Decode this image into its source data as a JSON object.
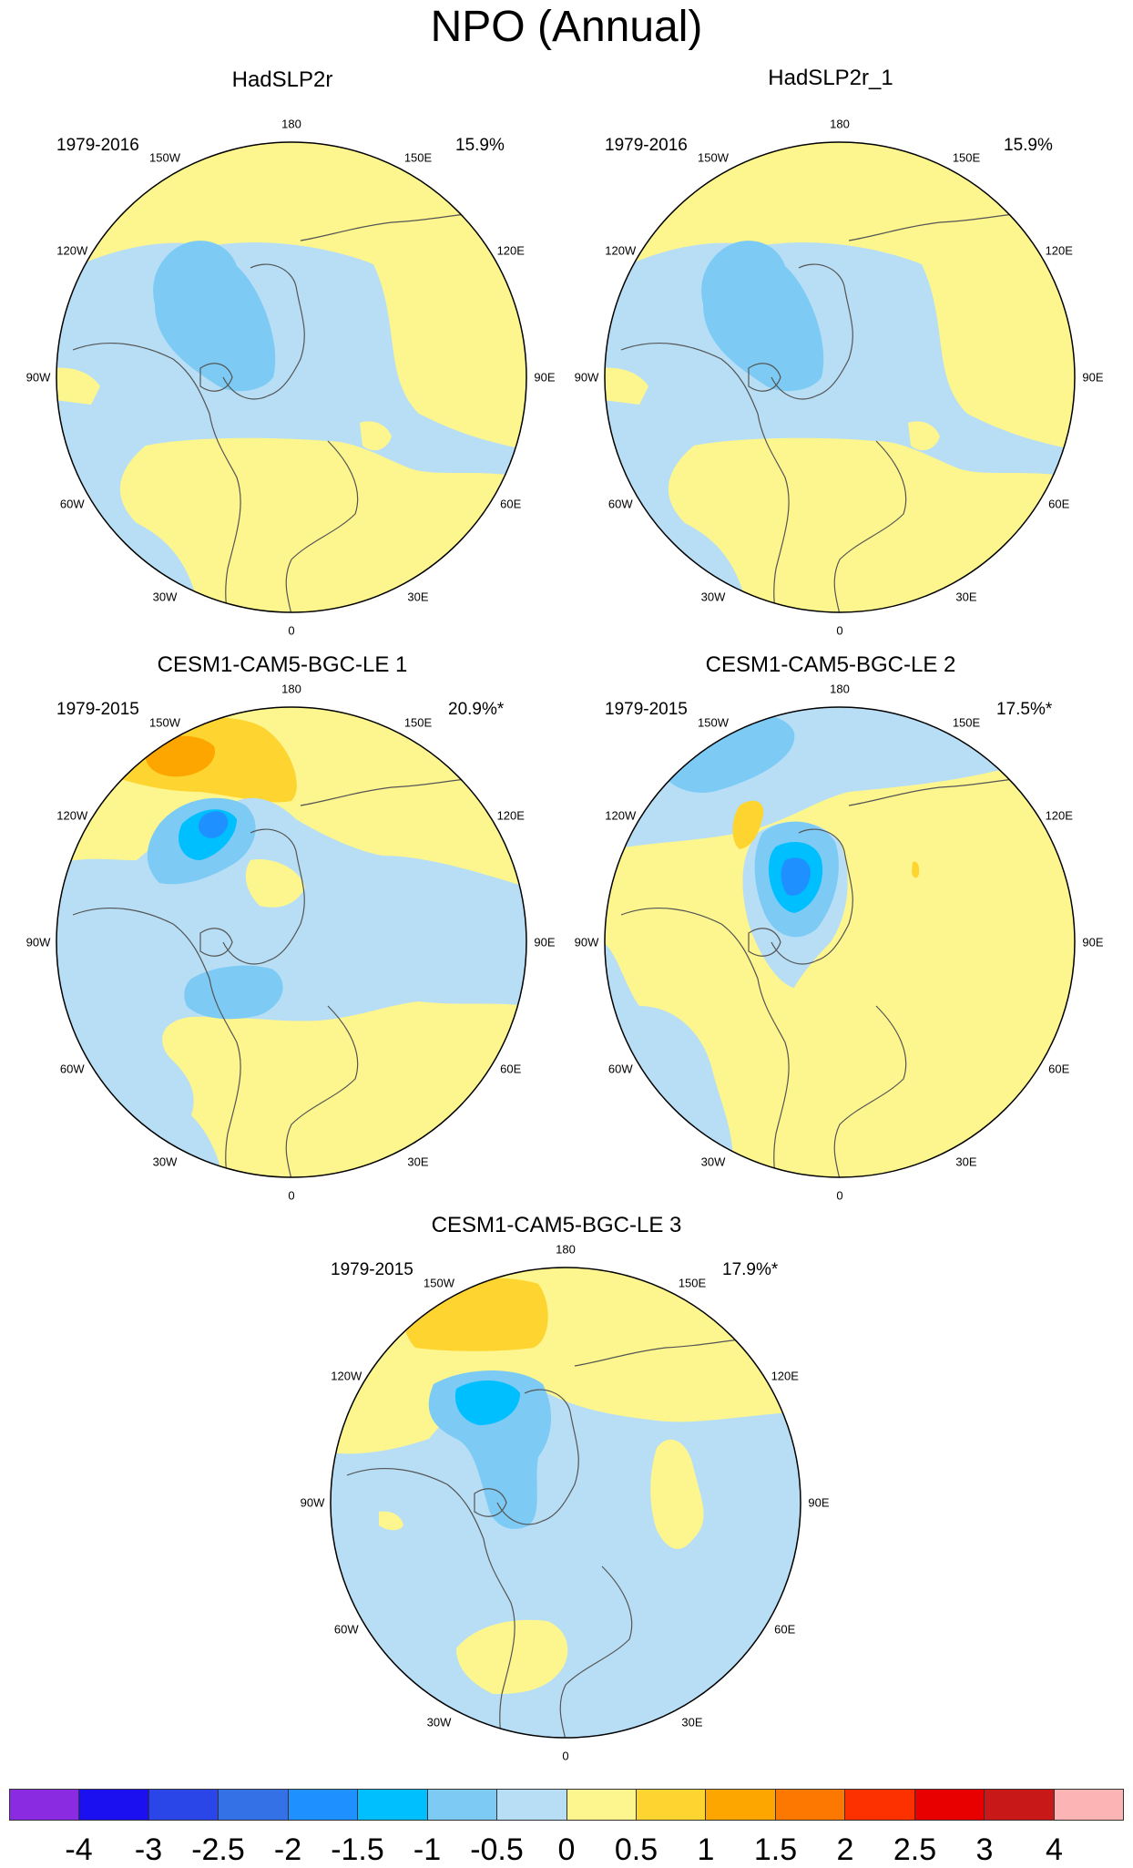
{
  "title": "NPO (Annual)",
  "lon_labels": [
    "180",
    "150E",
    "120E",
    "90E",
    "60E",
    "30E",
    "0",
    "30W",
    "60W",
    "90W",
    "120W",
    "150W"
  ],
  "panels": [
    {
      "name": "HadSLP2r",
      "years": "1979-2016",
      "pct": "15.9%",
      "pattern": "obs"
    },
    {
      "name": "HadSLP2r_1",
      "years": "1979-2016",
      "pct": "15.9%",
      "pattern": "obs"
    },
    {
      "name": "CESM1-CAM5-BGC-LE 1",
      "years": "1979-2015",
      "pct": "20.9%*",
      "pattern": "le1"
    },
    {
      "name": "CESM1-CAM5-BGC-LE 2",
      "years": "1979-2015",
      "pct": "17.5%*",
      "pattern": "le2"
    },
    {
      "name": "CESM1-CAM5-BGC-LE 3",
      "years": "1979-2015",
      "pct": "17.9%*",
      "pattern": "le3"
    }
  ],
  "colorbar": {
    "labels": [
      "-4",
      "-3",
      "-2.5",
      "-2",
      "-1.5",
      "-1",
      "-0.5",
      "0",
      "0.5",
      "1",
      "1.5",
      "2",
      "2.5",
      "3",
      "4"
    ],
    "colors": [
      "#8a2be2",
      "#1a10f0",
      "#2a45e8",
      "#3470e6",
      "#1e90ff",
      "#00bfff",
      "#7dcbf5",
      "#b7def5",
      "#fdf68e",
      "#fdd430",
      "#fda600",
      "#fd7800",
      "#fd3000",
      "#e80000",
      "#c81818",
      "#fdb4b4"
    ]
  },
  "shade_colors": {
    "neg2": "#1e90ff",
    "neg15": "#00bfff",
    "neg1": "#7dcbf5",
    "neg05": "#b7def5",
    "pos05": "#fdf68e",
    "pos1": "#fdd430",
    "pos15": "#fda600"
  }
}
